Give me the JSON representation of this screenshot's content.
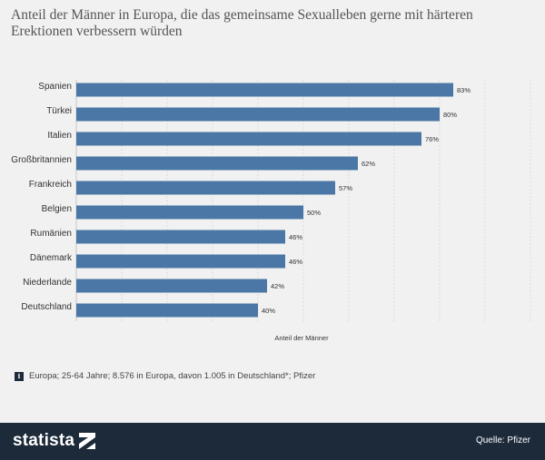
{
  "chart_data": {
    "type": "bar",
    "orientation": "horizontal",
    "title": "Anteil der Männer in Europa, die das gemeinsame Sexualleben gerne mit härteren Erektionen verbessern würden",
    "categories": [
      "Spanien",
      "Türkei",
      "Italien",
      "Großbritannien",
      "Frankreich",
      "Belgien",
      "Rumänien",
      "Dänemark",
      "Niederlande",
      "Deutschland"
    ],
    "values": [
      83,
      80,
      76,
      62,
      57,
      50,
      46,
      46,
      42,
      40
    ],
    "value_labels": [
      "83%",
      "80%",
      "76%",
      "62%",
      "57%",
      "50%",
      "46%",
      "46%",
      "42%",
      "40%"
    ],
    "xlabel": "Anteil der Männer",
    "ylabel": "",
    "xlim": [
      0,
      100
    ],
    "grid": "vertical",
    "bar_color": "#4a77a5"
  },
  "footnote": "Europa; 25-64 Jahre; 8.576 in Europa, davon 1.005 in Deutschland*; Pfizer",
  "info_icon_label": "i",
  "footer": {
    "logo_text": "statista",
    "source_label": "Quelle: Pfizer"
  }
}
